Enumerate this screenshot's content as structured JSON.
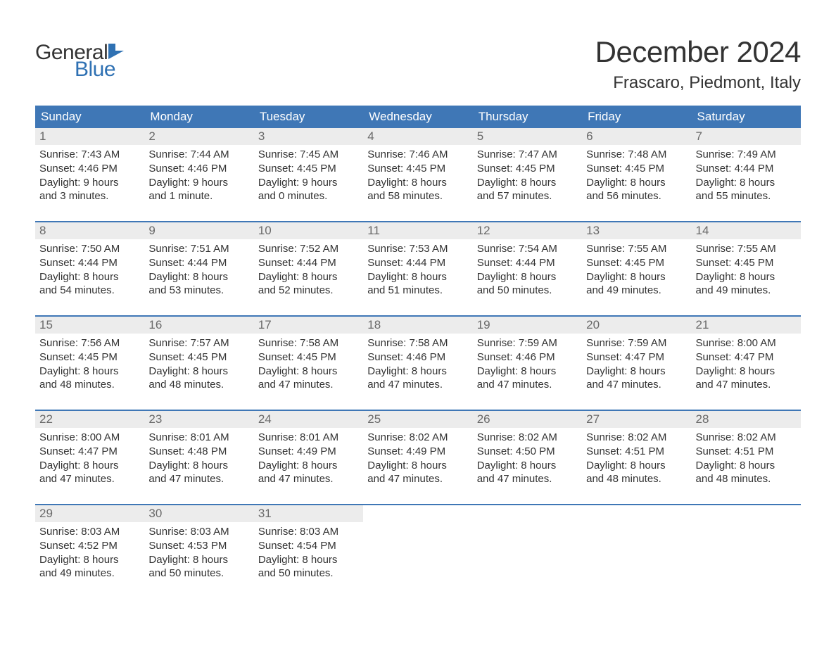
{
  "logo": {
    "general": "General",
    "blue": "Blue",
    "icon_color": "#2f71b3"
  },
  "title": "December 2024",
  "location": "Frascaro, Piedmont, Italy",
  "colors": {
    "header_bg": "#3f77b6",
    "header_text": "#ffffff",
    "daynum_bg": "#ececec",
    "daynum_text": "#6a6a6a",
    "body_text": "#333333",
    "row_border": "#3f77b6",
    "page_bg": "#ffffff",
    "logo_blue": "#2f71b3"
  },
  "day_names": [
    "Sunday",
    "Monday",
    "Tuesday",
    "Wednesday",
    "Thursday",
    "Friday",
    "Saturday"
  ],
  "weeks": [
    [
      {
        "n": "1",
        "sr": "Sunrise: 7:43 AM",
        "ss": "Sunset: 4:46 PM",
        "d1": "Daylight: 9 hours",
        "d2": "and 3 minutes."
      },
      {
        "n": "2",
        "sr": "Sunrise: 7:44 AM",
        "ss": "Sunset: 4:46 PM",
        "d1": "Daylight: 9 hours",
        "d2": "and 1 minute."
      },
      {
        "n": "3",
        "sr": "Sunrise: 7:45 AM",
        "ss": "Sunset: 4:45 PM",
        "d1": "Daylight: 9 hours",
        "d2": "and 0 minutes."
      },
      {
        "n": "4",
        "sr": "Sunrise: 7:46 AM",
        "ss": "Sunset: 4:45 PM",
        "d1": "Daylight: 8 hours",
        "d2": "and 58 minutes."
      },
      {
        "n": "5",
        "sr": "Sunrise: 7:47 AM",
        "ss": "Sunset: 4:45 PM",
        "d1": "Daylight: 8 hours",
        "d2": "and 57 minutes."
      },
      {
        "n": "6",
        "sr": "Sunrise: 7:48 AM",
        "ss": "Sunset: 4:45 PM",
        "d1": "Daylight: 8 hours",
        "d2": "and 56 minutes."
      },
      {
        "n": "7",
        "sr": "Sunrise: 7:49 AM",
        "ss": "Sunset: 4:44 PM",
        "d1": "Daylight: 8 hours",
        "d2": "and 55 minutes."
      }
    ],
    [
      {
        "n": "8",
        "sr": "Sunrise: 7:50 AM",
        "ss": "Sunset: 4:44 PM",
        "d1": "Daylight: 8 hours",
        "d2": "and 54 minutes."
      },
      {
        "n": "9",
        "sr": "Sunrise: 7:51 AM",
        "ss": "Sunset: 4:44 PM",
        "d1": "Daylight: 8 hours",
        "d2": "and 53 minutes."
      },
      {
        "n": "10",
        "sr": "Sunrise: 7:52 AM",
        "ss": "Sunset: 4:44 PM",
        "d1": "Daylight: 8 hours",
        "d2": "and 52 minutes."
      },
      {
        "n": "11",
        "sr": "Sunrise: 7:53 AM",
        "ss": "Sunset: 4:44 PM",
        "d1": "Daylight: 8 hours",
        "d2": "and 51 minutes."
      },
      {
        "n": "12",
        "sr": "Sunrise: 7:54 AM",
        "ss": "Sunset: 4:44 PM",
        "d1": "Daylight: 8 hours",
        "d2": "and 50 minutes."
      },
      {
        "n": "13",
        "sr": "Sunrise: 7:55 AM",
        "ss": "Sunset: 4:45 PM",
        "d1": "Daylight: 8 hours",
        "d2": "and 49 minutes."
      },
      {
        "n": "14",
        "sr": "Sunrise: 7:55 AM",
        "ss": "Sunset: 4:45 PM",
        "d1": "Daylight: 8 hours",
        "d2": "and 49 minutes."
      }
    ],
    [
      {
        "n": "15",
        "sr": "Sunrise: 7:56 AM",
        "ss": "Sunset: 4:45 PM",
        "d1": "Daylight: 8 hours",
        "d2": "and 48 minutes."
      },
      {
        "n": "16",
        "sr": "Sunrise: 7:57 AM",
        "ss": "Sunset: 4:45 PM",
        "d1": "Daylight: 8 hours",
        "d2": "and 48 minutes."
      },
      {
        "n": "17",
        "sr": "Sunrise: 7:58 AM",
        "ss": "Sunset: 4:45 PM",
        "d1": "Daylight: 8 hours",
        "d2": "and 47 minutes."
      },
      {
        "n": "18",
        "sr": "Sunrise: 7:58 AM",
        "ss": "Sunset: 4:46 PM",
        "d1": "Daylight: 8 hours",
        "d2": "and 47 minutes."
      },
      {
        "n": "19",
        "sr": "Sunrise: 7:59 AM",
        "ss": "Sunset: 4:46 PM",
        "d1": "Daylight: 8 hours",
        "d2": "and 47 minutes."
      },
      {
        "n": "20",
        "sr": "Sunrise: 7:59 AM",
        "ss": "Sunset: 4:47 PM",
        "d1": "Daylight: 8 hours",
        "d2": "and 47 minutes."
      },
      {
        "n": "21",
        "sr": "Sunrise: 8:00 AM",
        "ss": "Sunset: 4:47 PM",
        "d1": "Daylight: 8 hours",
        "d2": "and 47 minutes."
      }
    ],
    [
      {
        "n": "22",
        "sr": "Sunrise: 8:00 AM",
        "ss": "Sunset: 4:47 PM",
        "d1": "Daylight: 8 hours",
        "d2": "and 47 minutes."
      },
      {
        "n": "23",
        "sr": "Sunrise: 8:01 AM",
        "ss": "Sunset: 4:48 PM",
        "d1": "Daylight: 8 hours",
        "d2": "and 47 minutes."
      },
      {
        "n": "24",
        "sr": "Sunrise: 8:01 AM",
        "ss": "Sunset: 4:49 PM",
        "d1": "Daylight: 8 hours",
        "d2": "and 47 minutes."
      },
      {
        "n": "25",
        "sr": "Sunrise: 8:02 AM",
        "ss": "Sunset: 4:49 PM",
        "d1": "Daylight: 8 hours",
        "d2": "and 47 minutes."
      },
      {
        "n": "26",
        "sr": "Sunrise: 8:02 AM",
        "ss": "Sunset: 4:50 PM",
        "d1": "Daylight: 8 hours",
        "d2": "and 47 minutes."
      },
      {
        "n": "27",
        "sr": "Sunrise: 8:02 AM",
        "ss": "Sunset: 4:51 PM",
        "d1": "Daylight: 8 hours",
        "d2": "and 48 minutes."
      },
      {
        "n": "28",
        "sr": "Sunrise: 8:02 AM",
        "ss": "Sunset: 4:51 PM",
        "d1": "Daylight: 8 hours",
        "d2": "and 48 minutes."
      }
    ],
    [
      {
        "n": "29",
        "sr": "Sunrise: 8:03 AM",
        "ss": "Sunset: 4:52 PM",
        "d1": "Daylight: 8 hours",
        "d2": "and 49 minutes."
      },
      {
        "n": "30",
        "sr": "Sunrise: 8:03 AM",
        "ss": "Sunset: 4:53 PM",
        "d1": "Daylight: 8 hours",
        "d2": "and 50 minutes."
      },
      {
        "n": "31",
        "sr": "Sunrise: 8:03 AM",
        "ss": "Sunset: 4:54 PM",
        "d1": "Daylight: 8 hours",
        "d2": "and 50 minutes."
      },
      null,
      null,
      null,
      null
    ]
  ]
}
